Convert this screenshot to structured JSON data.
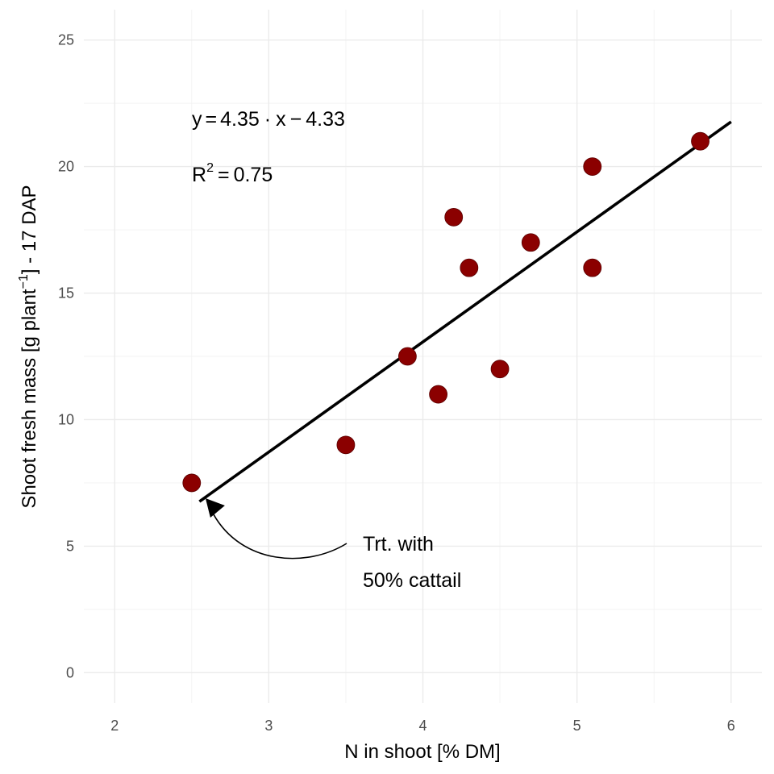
{
  "chart_data": {
    "type": "scatter",
    "xlabel": "N in shoot [% DM]",
    "ylabel_parts": {
      "pre": "Shoot fresh mass [g plant",
      "sup": "−1",
      "post": "] - 17 DAP"
    },
    "xlim": [
      1.8,
      6.2
    ],
    "ylim": [
      -1.2,
      26.2
    ],
    "x_ticks": [
      2,
      3,
      4,
      5,
      6
    ],
    "y_ticks": [
      0,
      5,
      10,
      15,
      20,
      25
    ],
    "grid": true,
    "points": [
      {
        "x": 2.5,
        "y": 7.5
      },
      {
        "x": 3.5,
        "y": 9.0
      },
      {
        "x": 3.9,
        "y": 12.5
      },
      {
        "x": 4.1,
        "y": 11.0
      },
      {
        "x": 4.2,
        "y": 18.0
      },
      {
        "x": 4.3,
        "y": 16.0
      },
      {
        "x": 4.5,
        "y": 12.0
      },
      {
        "x": 4.7,
        "y": 17.0
      },
      {
        "x": 5.1,
        "y": 20.0
      },
      {
        "x": 5.1,
        "y": 16.0
      },
      {
        "x": 5.8,
        "y": 21.0
      }
    ],
    "point_color": "#8b0000",
    "regression": {
      "slope": 4.35,
      "intercept": -4.33,
      "x_range": [
        2.55,
        6.0
      ],
      "color": "#000000"
    },
    "equation": {
      "lhs": "y",
      "slope": "4.35",
      "intercept": "4.33",
      "r2_label": "R",
      "r2_sup": "2",
      "r2_value": "0.75"
    },
    "annotation": {
      "line1": "Trt. with",
      "line2": "50% cattail",
      "arrow_to": {
        "x": 2.6,
        "y": 6.7
      }
    }
  }
}
